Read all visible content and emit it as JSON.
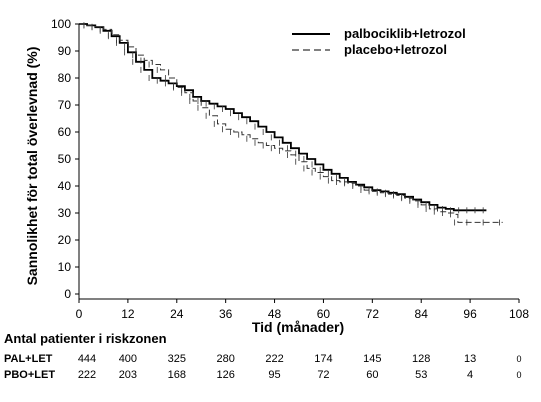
{
  "chart_data": {
    "type": "line",
    "xlabel": "Tid (månader)",
    "ylabel": "Sannolikhet för total överlevnad (%)",
    "xlim": [
      0,
      108
    ],
    "ylim": [
      0,
      100
    ],
    "x_ticks": [
      "0",
      "12",
      "24",
      "36",
      "48",
      "60",
      "72",
      "84",
      "96",
      "108"
    ],
    "y_ticks": [
      "0",
      "10",
      "20",
      "30",
      "40",
      "50",
      "60",
      "70",
      "80",
      "90",
      "100"
    ],
    "legend_position": "top-right",
    "series": [
      {
        "name": "palbociklib+letrozol",
        "style": "solid",
        "points": [
          [
            0,
            100
          ],
          [
            2,
            99.5
          ],
          [
            4,
            98.8
          ],
          [
            6,
            97.5
          ],
          [
            8,
            95.5
          ],
          [
            10,
            93
          ],
          [
            12,
            89.5
          ],
          [
            14,
            86
          ],
          [
            16,
            83
          ],
          [
            18,
            80
          ],
          [
            20,
            79
          ],
          [
            22,
            78
          ],
          [
            24,
            77
          ],
          [
            26,
            75.5
          ],
          [
            28,
            73
          ],
          [
            30,
            71.5
          ],
          [
            32,
            70.5
          ],
          [
            34,
            69.5
          ],
          [
            36,
            68.5
          ],
          [
            38,
            67
          ],
          [
            40,
            65.5
          ],
          [
            42,
            64
          ],
          [
            44,
            62
          ],
          [
            46,
            60
          ],
          [
            48,
            58
          ],
          [
            50,
            56
          ],
          [
            52,
            54
          ],
          [
            54,
            52
          ],
          [
            56,
            50
          ],
          [
            58,
            48
          ],
          [
            60,
            46
          ],
          [
            62,
            44.5
          ],
          [
            64,
            43
          ],
          [
            66,
            41.5
          ],
          [
            68,
            40.5
          ],
          [
            70,
            39.5
          ],
          [
            72,
            38.5
          ],
          [
            74,
            38
          ],
          [
            76,
            37.5
          ],
          [
            78,
            37
          ],
          [
            80,
            36
          ],
          [
            82,
            35
          ],
          [
            84,
            34
          ],
          [
            86,
            33
          ],
          [
            88,
            32
          ],
          [
            90,
            31.5
          ],
          [
            92,
            31
          ],
          [
            94,
            31
          ],
          [
            96,
            31
          ],
          [
            98,
            31
          ],
          [
            100,
            31
          ]
        ]
      },
      {
        "name": "placebo+letrozol",
        "style": "dashed",
        "points": [
          [
            0,
            100
          ],
          [
            2,
            99.5
          ],
          [
            4,
            99
          ],
          [
            6,
            98
          ],
          [
            8,
            96
          ],
          [
            10,
            94
          ],
          [
            12,
            91.5
          ],
          [
            14,
            88.5
          ],
          [
            16,
            86.5
          ],
          [
            18,
            85
          ],
          [
            20,
            83
          ],
          [
            22,
            80
          ],
          [
            24,
            76.5
          ],
          [
            26,
            74.5
          ],
          [
            28,
            71.5
          ],
          [
            30,
            69
          ],
          [
            32,
            66
          ],
          [
            34,
            63
          ],
          [
            36,
            61
          ],
          [
            38,
            60
          ],
          [
            40,
            59
          ],
          [
            42,
            57.5
          ],
          [
            44,
            56
          ],
          [
            46,
            55
          ],
          [
            48,
            54
          ],
          [
            50,
            53
          ],
          [
            52,
            51.5
          ],
          [
            54,
            49
          ],
          [
            56,
            46.5
          ],
          [
            58,
            45
          ],
          [
            60,
            43.5
          ],
          [
            62,
            42
          ],
          [
            64,
            41.5
          ],
          [
            66,
            41
          ],
          [
            68,
            40
          ],
          [
            70,
            38.5
          ],
          [
            72,
            38
          ],
          [
            74,
            37.5
          ],
          [
            76,
            37
          ],
          [
            78,
            36.5
          ],
          [
            80,
            35.5
          ],
          [
            82,
            34.5
          ],
          [
            84,
            33
          ],
          [
            86,
            31.5
          ],
          [
            88,
            30.5
          ],
          [
            90,
            30
          ],
          [
            92,
            29.5
          ],
          [
            93,
            26.5
          ],
          [
            96,
            26.5
          ],
          [
            100,
            26.5
          ],
          [
            104,
            26.5
          ]
        ]
      }
    ],
    "risk_table": {
      "title": "Antal patienter i riskzonen",
      "times": [
        0,
        12,
        24,
        36,
        48,
        60,
        72,
        84,
        96,
        108
      ],
      "rows": [
        {
          "label": "PAL+LET",
          "values": [
            "444",
            "400",
            "325",
            "280",
            "222",
            "174",
            "145",
            "128",
            "13",
            "0"
          ]
        },
        {
          "label": "PBO+LET",
          "values": [
            "222",
            "203",
            "168",
            "126",
            "95",
            "72",
            "60",
            "53",
            "4",
            "0"
          ]
        }
      ]
    }
  }
}
